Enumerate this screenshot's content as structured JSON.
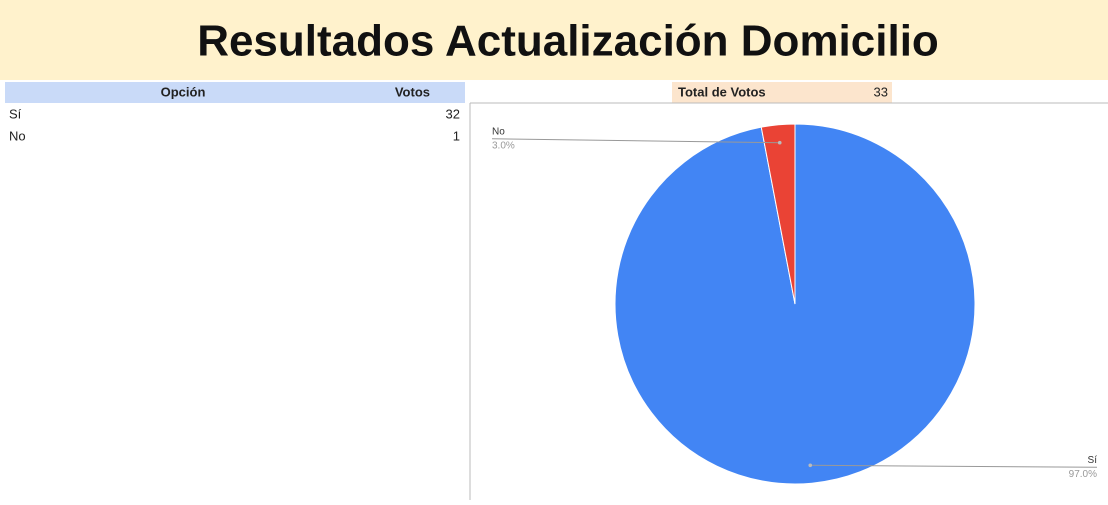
{
  "title": "Resultados Actualización Domicilio",
  "table": {
    "headers": [
      "Opción",
      "Votos"
    ],
    "rows": [
      [
        "Sí",
        32
      ],
      [
        "No",
        1
      ]
    ]
  },
  "total": {
    "label": "Total de Votos",
    "value": 33
  },
  "chart_data": {
    "type": "pie",
    "categories": [
      "Sí",
      "No"
    ],
    "values": [
      97.0,
      3.0
    ],
    "value_labels": [
      "97.0%",
      "3.0%"
    ],
    "colors": [
      "#4285f4",
      "#ea4335"
    ]
  }
}
